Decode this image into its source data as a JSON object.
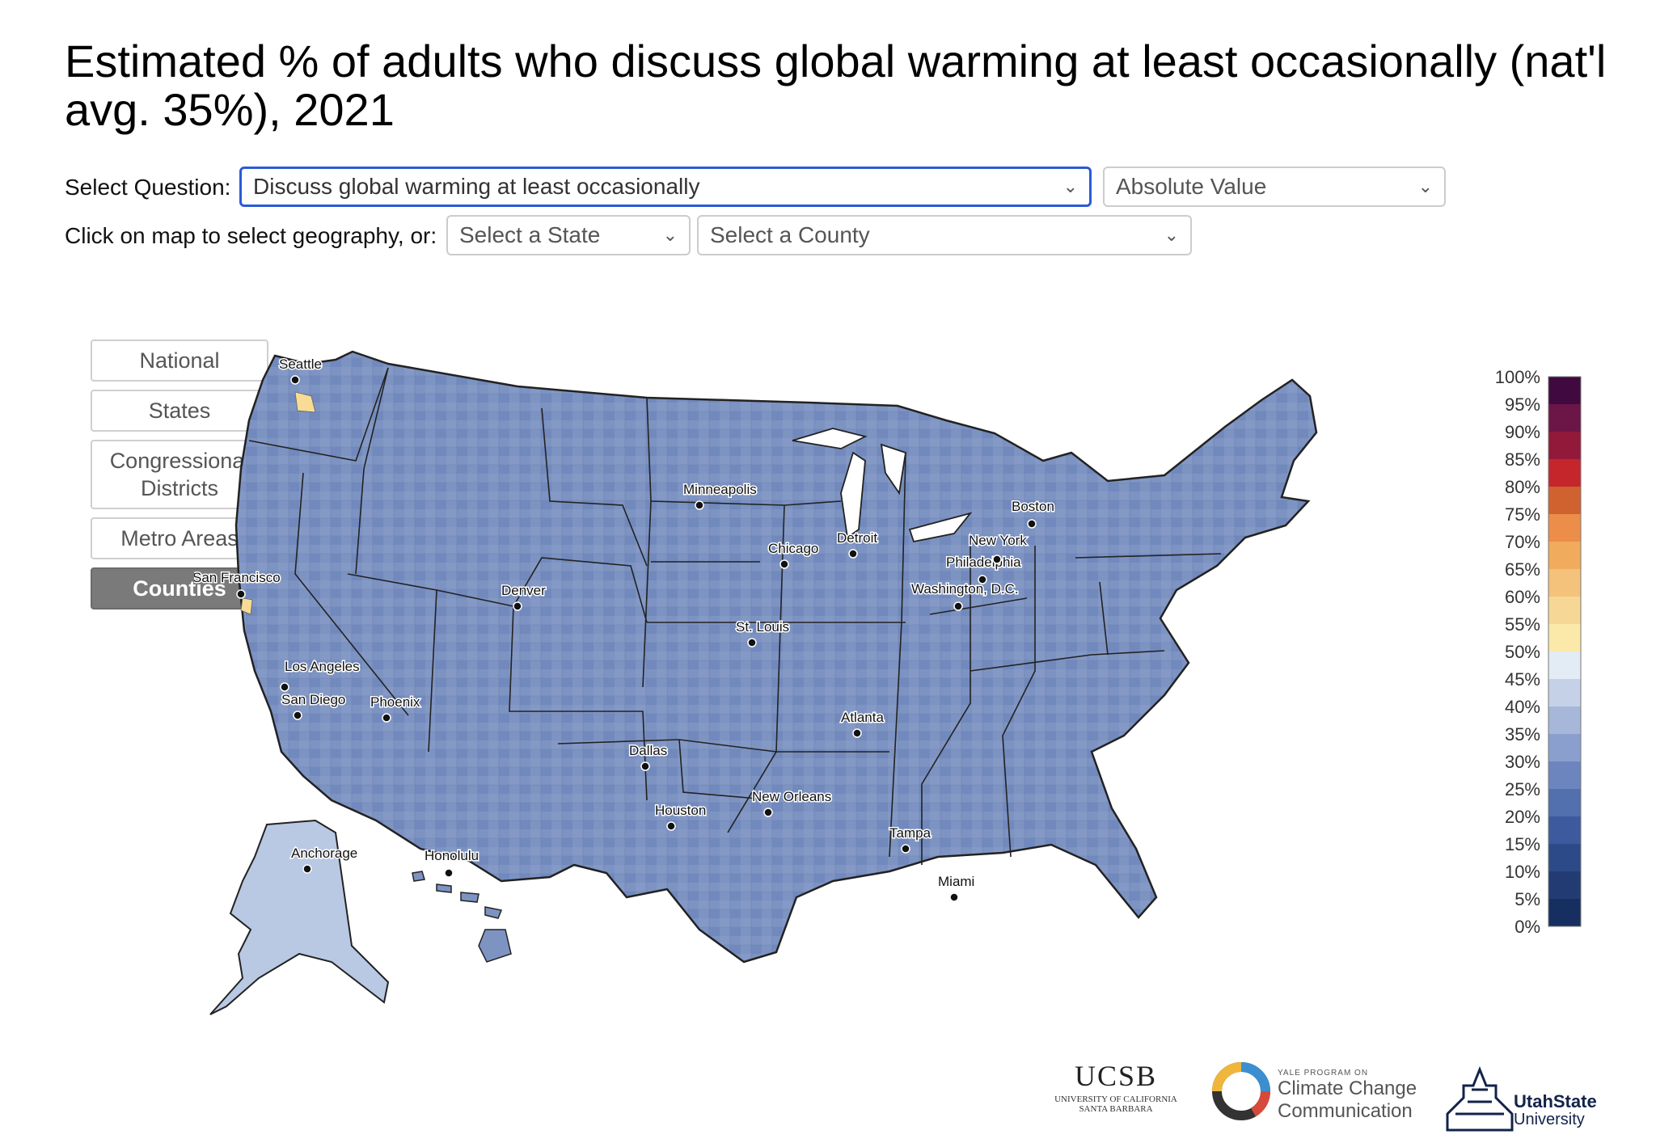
{
  "title": "Estimated % of adults who discuss global warming at least occasionally (nat'l avg. 35%), 2021",
  "controls": {
    "question_label": "Select Question:",
    "question_value": "Discuss global warming at least occasionally",
    "measure_value": "Absolute Value",
    "geo_label": "Click on map to select geography, or:",
    "state_placeholder": "Select a State",
    "county_placeholder": "Select a County"
  },
  "geo_buttons": [
    {
      "label": "National",
      "active": false
    },
    {
      "label": "States",
      "active": false
    },
    {
      "label": "Congressional Districts",
      "active": false
    },
    {
      "label": "Metro Areas",
      "active": false
    },
    {
      "label": "Counties",
      "active": true
    }
  ],
  "map": {
    "cities": [
      {
        "name": "Seattle"
      },
      {
        "name": "San Francisco"
      },
      {
        "name": "Los Angeles"
      },
      {
        "name": "San Diego"
      },
      {
        "name": "Phoenix"
      },
      {
        "name": "Denver"
      },
      {
        "name": "Minneapolis"
      },
      {
        "name": "Chicago"
      },
      {
        "name": "Detroit"
      },
      {
        "name": "St. Louis"
      },
      {
        "name": "Dallas"
      },
      {
        "name": "Houston"
      },
      {
        "name": "New Orleans"
      },
      {
        "name": "Atlanta"
      },
      {
        "name": "Tampa"
      },
      {
        "name": "Miami"
      },
      {
        "name": "Washington, D.C."
      },
      {
        "name": "Philadelphia"
      },
      {
        "name": "New York"
      },
      {
        "name": "Boston"
      },
      {
        "name": "Anchorage"
      },
      {
        "name": "Honolulu"
      }
    ],
    "fill_color": "#7d93c2",
    "border_color": "#222222"
  },
  "legend": {
    "labels": [
      "100%",
      "95%",
      "90%",
      "85%",
      "80%",
      "75%",
      "70%",
      "65%",
      "60%",
      "55%",
      "50%",
      "45%",
      "40%",
      "35%",
      "30%",
      "25%",
      "20%",
      "15%",
      "10%",
      "5%",
      "0%"
    ],
    "colors": [
      "#40093f",
      "#6b1646",
      "#92193a",
      "#c4262c",
      "#d0622f",
      "#ec8d4a",
      "#f1ab5c",
      "#f4c27a",
      "#f6d795",
      "#fae9a9",
      "#e3ebf4",
      "#c5d1e6",
      "#a6b7d9",
      "#8a9fcd",
      "#6d85bf",
      "#526fae",
      "#3c5a9d",
      "#2d4a88",
      "#223b73",
      "#172f60"
    ]
  },
  "logos": {
    "ucsb_main": "UCSB",
    "ucsb_sub1": "UNIVERSITY OF CALIFORNIA",
    "ucsb_sub2": "SANTA BARBARA",
    "yale_top": "YALE PROGRAM ON",
    "yale_line1": "Climate Change",
    "yale_line2": "Communication",
    "usu_line1": "UtahState",
    "usu_line2": "University"
  }
}
